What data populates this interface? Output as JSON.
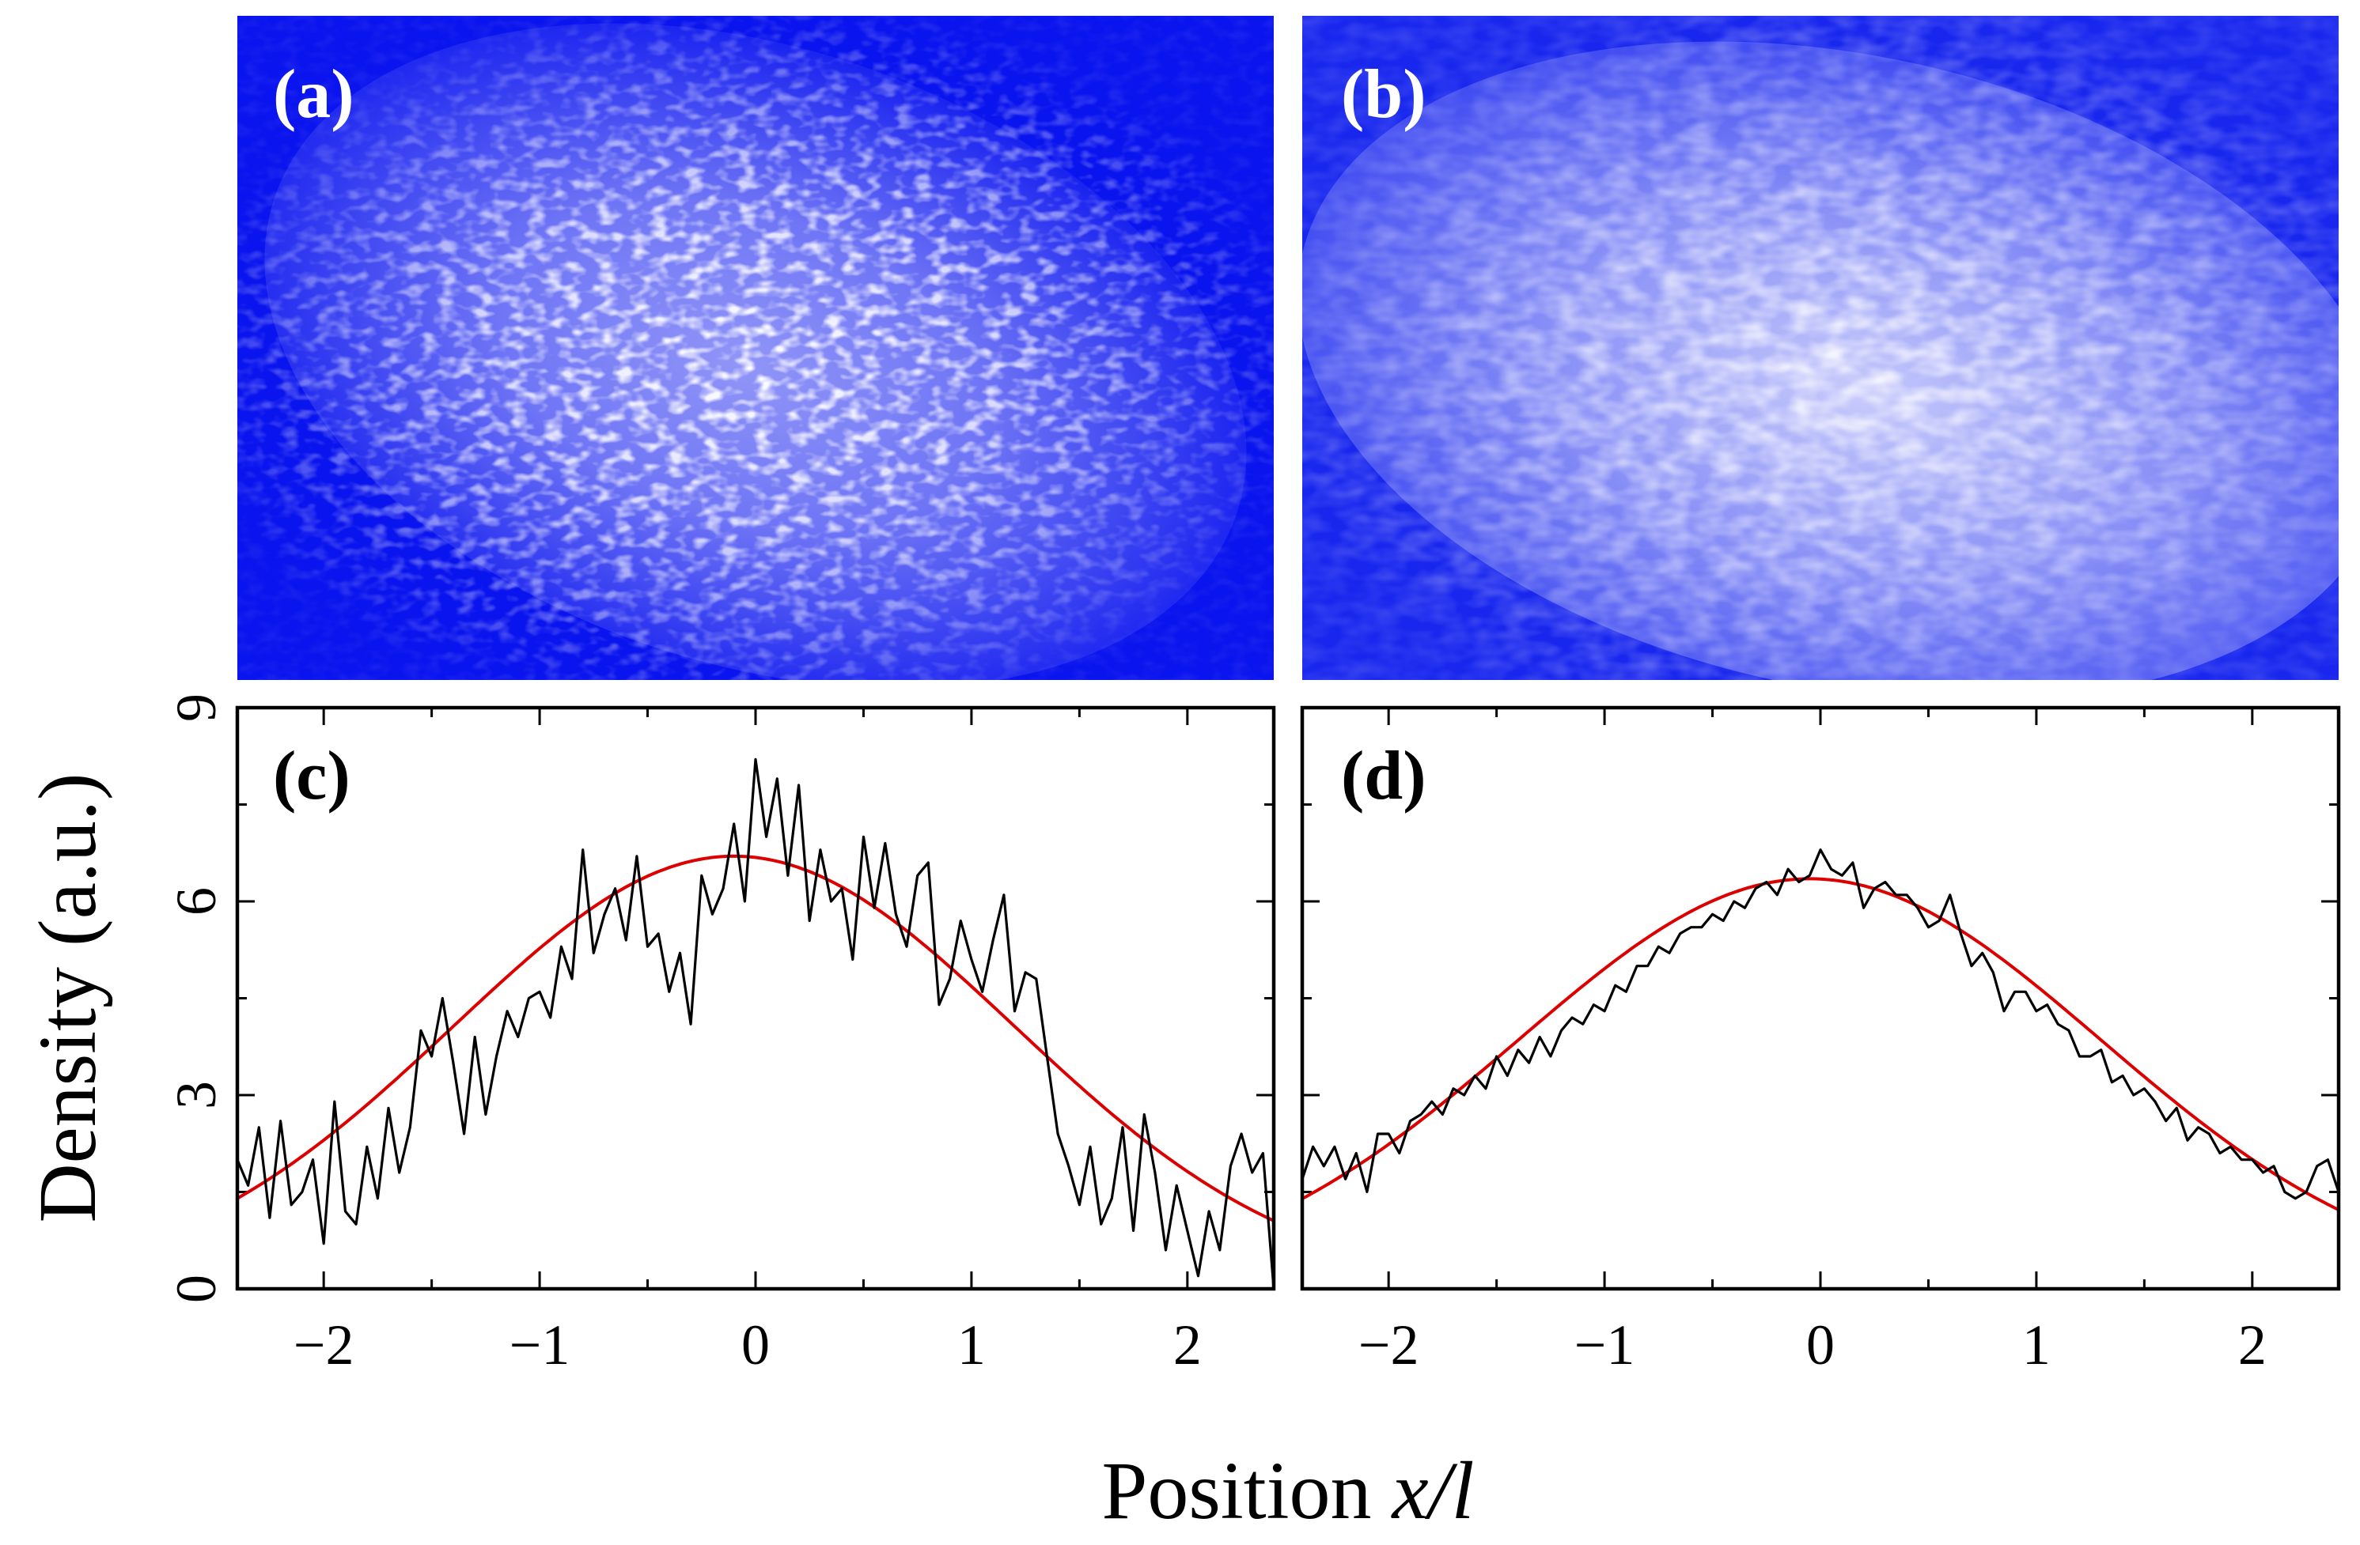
{
  "figure": {
    "ylabel_text": "Density (a.u.)",
    "xlabel_prefix": "Position ",
    "xlabel_var": "x/l"
  },
  "colors": {
    "image_base": "#0a14ee",
    "image_bright": "#ffffff",
    "data_line": "#000000",
    "fit_line": "#dd0000",
    "axis": "#000000"
  },
  "images": [
    {
      "label": "(a)",
      "description_kind": "noisy density image"
    },
    {
      "label": "(b)",
      "description_kind": "averaged density image"
    }
  ],
  "chart_data": [
    {
      "type": "line",
      "panel_label": "(c)",
      "xlabel": "Position x/l",
      "ylabel": "Density (a.u.)",
      "xlim": [
        -2.4,
        2.4
      ],
      "ylim": [
        0,
        9
      ],
      "xticks": [
        -2,
        -1,
        0,
        1,
        2
      ],
      "xtick_labels": [
        "−2",
        "−1",
        "0",
        "1",
        "2"
      ],
      "yticks": [
        0,
        3,
        6,
        9
      ],
      "ytick_labels": [
        "0",
        "3",
        "6",
        "9"
      ],
      "series": [
        {
          "name": "data",
          "color": "#000000",
          "x": [
            -2.4,
            -2.35,
            -2.3,
            -2.25,
            -2.2,
            -2.15,
            -2.1,
            -2.05,
            -2.0,
            -1.95,
            -1.9,
            -1.85,
            -1.8,
            -1.75,
            -1.7,
            -1.65,
            -1.6,
            -1.55,
            -1.5,
            -1.45,
            -1.4,
            -1.35,
            -1.3,
            -1.25,
            -1.2,
            -1.15,
            -1.1,
            -1.05,
            -1.0,
            -0.95,
            -0.9,
            -0.85,
            -0.8,
            -0.75,
            -0.7,
            -0.65,
            -0.6,
            -0.55,
            -0.5,
            -0.45,
            -0.4,
            -0.35,
            -0.3,
            -0.25,
            -0.2,
            -0.15,
            -0.1,
            -0.05,
            0.0,
            0.05,
            0.1,
            0.15,
            0.2,
            0.25,
            0.3,
            0.35,
            0.4,
            0.45,
            0.5,
            0.55,
            0.6,
            0.65,
            0.7,
            0.75,
            0.8,
            0.85,
            0.9,
            0.95,
            1.0,
            1.05,
            1.1,
            1.15,
            1.2,
            1.25,
            1.3,
            1.35,
            1.4,
            1.45,
            1.5,
            1.55,
            1.6,
            1.65,
            1.7,
            1.75,
            1.8,
            1.85,
            1.9,
            1.95,
            2.0,
            2.05,
            2.1,
            2.15,
            2.2,
            2.25,
            2.3,
            2.35,
            2.4
          ],
          "values": [
            2.0,
            1.6,
            2.5,
            1.1,
            2.6,
            1.3,
            1.5,
            2.0,
            0.7,
            2.9,
            1.2,
            1.0,
            2.2,
            1.4,
            2.8,
            1.8,
            2.5,
            4.0,
            3.6,
            4.5,
            3.5,
            2.4,
            3.9,
            2.7,
            3.6,
            4.3,
            3.9,
            4.5,
            4.6,
            4.2,
            5.3,
            4.8,
            6.8,
            5.2,
            5.8,
            6.2,
            5.4,
            6.7,
            5.3,
            5.5,
            4.6,
            5.2,
            4.1,
            6.4,
            5.8,
            6.2,
            7.2,
            6.0,
            8.2,
            7.0,
            7.9,
            6.4,
            7.8,
            5.7,
            6.8,
            6.0,
            6.2,
            5.1,
            7.0,
            5.9,
            6.9,
            5.8,
            5.3,
            6.4,
            6.6,
            4.4,
            4.8,
            5.7,
            5.1,
            4.6,
            5.4,
            6.1,
            4.3,
            4.9,
            4.8,
            3.6,
            2.4,
            1.9,
            1.3,
            2.2,
            1.0,
            1.4,
            2.5,
            0.9,
            2.7,
            1.8,
            0.6,
            1.6,
            0.9,
            0.2,
            1.2,
            0.6,
            1.9,
            2.4,
            1.8,
            2.1,
            0.0
          ]
        },
        {
          "name": "fit",
          "color": "#dd0000",
          "amplitude": 6.7,
          "center": -0.1,
          "width": 1.3
        }
      ]
    },
    {
      "type": "line",
      "panel_label": "(d)",
      "xlabel": "Position x/l",
      "ylabel": "Density (a.u.)",
      "xlim": [
        -2.4,
        2.4
      ],
      "ylim": [
        0,
        9
      ],
      "xticks": [
        -2,
        -1,
        0,
        1,
        2
      ],
      "xtick_labels": [
        "−2",
        "−1",
        "0",
        "1",
        "2"
      ],
      "yticks": [
        0,
        3,
        6,
        9
      ],
      "series": [
        {
          "name": "data",
          "color": "#000000",
          "x": [
            -2.4,
            -2.35,
            -2.3,
            -2.25,
            -2.2,
            -2.15,
            -2.1,
            -2.05,
            -2.0,
            -1.95,
            -1.9,
            -1.85,
            -1.8,
            -1.75,
            -1.7,
            -1.65,
            -1.6,
            -1.55,
            -1.5,
            -1.45,
            -1.4,
            -1.35,
            -1.3,
            -1.25,
            -1.2,
            -1.15,
            -1.1,
            -1.05,
            -1.0,
            -0.95,
            -0.9,
            -0.85,
            -0.8,
            -0.75,
            -0.7,
            -0.65,
            -0.6,
            -0.55,
            -0.5,
            -0.45,
            -0.4,
            -0.35,
            -0.3,
            -0.25,
            -0.2,
            -0.15,
            -0.1,
            -0.05,
            0.0,
            0.05,
            0.1,
            0.15,
            0.2,
            0.25,
            0.3,
            0.35,
            0.4,
            0.45,
            0.5,
            0.55,
            0.6,
            0.65,
            0.7,
            0.75,
            0.8,
            0.85,
            0.9,
            0.95,
            1.0,
            1.05,
            1.1,
            1.15,
            1.2,
            1.25,
            1.3,
            1.35,
            1.4,
            1.45,
            1.5,
            1.55,
            1.6,
            1.65,
            1.7,
            1.75,
            1.8,
            1.85,
            1.9,
            1.95,
            2.0,
            2.05,
            2.1,
            2.15,
            2.2,
            2.25,
            2.3,
            2.35,
            2.4
          ],
          "values": [
            1.7,
            2.2,
            1.9,
            2.2,
            1.7,
            2.1,
            1.5,
            2.4,
            2.4,
            2.1,
            2.6,
            2.7,
            2.9,
            2.7,
            3.1,
            3.0,
            3.3,
            3.1,
            3.6,
            3.3,
            3.7,
            3.5,
            3.9,
            3.6,
            4.0,
            4.2,
            4.1,
            4.4,
            4.3,
            4.7,
            4.6,
            5.0,
            5.0,
            5.3,
            5.2,
            5.5,
            5.6,
            5.6,
            5.8,
            5.7,
            6.0,
            5.9,
            6.2,
            6.3,
            6.1,
            6.5,
            6.3,
            6.4,
            6.8,
            6.5,
            6.4,
            6.6,
            5.9,
            6.2,
            6.3,
            6.1,
            6.1,
            5.9,
            5.6,
            5.7,
            6.1,
            5.5,
            5.0,
            5.2,
            4.9,
            4.3,
            4.6,
            4.6,
            4.3,
            4.4,
            4.1,
            4.0,
            3.6,
            3.6,
            3.7,
            3.2,
            3.3,
            3.0,
            3.1,
            2.9,
            2.6,
            2.8,
            2.3,
            2.5,
            2.4,
            2.1,
            2.2,
            2.0,
            2.0,
            1.8,
            1.9,
            1.5,
            1.4,
            1.5,
            1.9,
            2.0,
            1.5
          ]
        },
        {
          "name": "fit",
          "color": "#dd0000",
          "amplitude": 6.35,
          "center": -0.05,
          "width": 1.35
        }
      ]
    }
  ]
}
